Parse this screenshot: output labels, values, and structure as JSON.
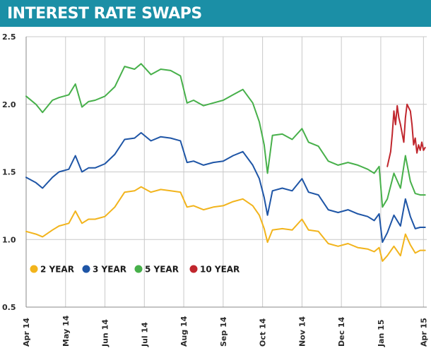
{
  "header": {
    "title": "INTEREST RATE SWAPS"
  },
  "chart_data": {
    "type": "line",
    "title": "INTEREST RATE SWAPS",
    "xlabel": "",
    "ylabel": "",
    "ylim": [
      0.5,
      2.5
    ],
    "xlim": [
      0,
      12.2
    ],
    "y_ticks": [
      "0.5",
      "1.0",
      "1.5",
      "2.0",
      "2.5"
    ],
    "y_tick_values": [
      0.5,
      1.0,
      1.5,
      2.0,
      2.5
    ],
    "x_ticks": [
      "Apr 14",
      "May 14",
      "Jun 14",
      "Jul 14",
      "Aug 14",
      "Sep 14",
      "Oct 14",
      "Nov 14",
      "Dec 14",
      "Jan 15",
      "Apr 15"
    ],
    "x_tick_values": [
      0,
      1.2,
      2.4,
      3.6,
      4.8,
      6.0,
      7.2,
      8.4,
      9.6,
      10.8,
      12.1
    ],
    "grid": true,
    "legend_position": "bottom-left",
    "series": [
      {
        "name": "2 YEAR",
        "color": "#f2b41c",
        "x": [
          0,
          0.3,
          0.5,
          0.8,
          1.0,
          1.3,
          1.5,
          1.7,
          1.9,
          2.1,
          2.4,
          2.7,
          3.0,
          3.3,
          3.5,
          3.8,
          4.1,
          4.4,
          4.7,
          4.9,
          5.1,
          5.4,
          5.7,
          6.0,
          6.3,
          6.6,
          6.9,
          7.1,
          7.25,
          7.35,
          7.5,
          7.8,
          8.1,
          8.4,
          8.6,
          8.9,
          9.2,
          9.5,
          9.8,
          10.1,
          10.4,
          10.6,
          10.75,
          10.85,
          11.0,
          11.2,
          11.4,
          11.55,
          11.7,
          11.85,
          12.0,
          12.15
        ],
        "values": [
          1.06,
          1.04,
          1.02,
          1.07,
          1.1,
          1.12,
          1.21,
          1.12,
          1.15,
          1.15,
          1.17,
          1.24,
          1.35,
          1.36,
          1.39,
          1.35,
          1.37,
          1.36,
          1.35,
          1.24,
          1.25,
          1.22,
          1.24,
          1.25,
          1.28,
          1.3,
          1.25,
          1.18,
          1.08,
          0.98,
          1.07,
          1.08,
          1.07,
          1.15,
          1.07,
          1.06,
          0.97,
          0.95,
          0.97,
          0.94,
          0.93,
          0.91,
          0.94,
          0.84,
          0.88,
          0.95,
          0.88,
          1.04,
          0.96,
          0.9,
          0.92,
          0.92
        ]
      },
      {
        "name": "3 YEAR",
        "color": "#1e55a6",
        "x": [
          0,
          0.3,
          0.5,
          0.8,
          1.0,
          1.3,
          1.5,
          1.7,
          1.9,
          2.1,
          2.4,
          2.7,
          3.0,
          3.3,
          3.5,
          3.8,
          4.1,
          4.4,
          4.7,
          4.9,
          5.1,
          5.4,
          5.7,
          6.0,
          6.3,
          6.6,
          6.9,
          7.1,
          7.25,
          7.35,
          7.5,
          7.8,
          8.1,
          8.4,
          8.6,
          8.9,
          9.2,
          9.5,
          9.8,
          10.1,
          10.4,
          10.6,
          10.75,
          10.85,
          11.0,
          11.2,
          11.4,
          11.55,
          11.7,
          11.85,
          12.0,
          12.15
        ],
        "values": [
          1.46,
          1.42,
          1.38,
          1.46,
          1.5,
          1.52,
          1.62,
          1.5,
          1.53,
          1.53,
          1.56,
          1.63,
          1.74,
          1.75,
          1.79,
          1.73,
          1.76,
          1.75,
          1.73,
          1.57,
          1.58,
          1.55,
          1.57,
          1.58,
          1.62,
          1.65,
          1.55,
          1.45,
          1.31,
          1.18,
          1.36,
          1.38,
          1.36,
          1.45,
          1.35,
          1.33,
          1.22,
          1.2,
          1.22,
          1.19,
          1.17,
          1.14,
          1.19,
          0.98,
          1.05,
          1.18,
          1.1,
          1.3,
          1.17,
          1.08,
          1.09,
          1.09
        ]
      },
      {
        "name": "5 YEAR",
        "color": "#47b04a",
        "x": [
          0,
          0.3,
          0.5,
          0.8,
          1.0,
          1.3,
          1.5,
          1.7,
          1.9,
          2.1,
          2.4,
          2.7,
          3.0,
          3.3,
          3.5,
          3.8,
          4.1,
          4.4,
          4.7,
          4.9,
          5.1,
          5.4,
          5.7,
          6.0,
          6.3,
          6.6,
          6.9,
          7.1,
          7.25,
          7.35,
          7.5,
          7.8,
          8.1,
          8.4,
          8.6,
          8.9,
          9.2,
          9.5,
          9.8,
          10.1,
          10.4,
          10.6,
          10.75,
          10.85,
          11.0,
          11.2,
          11.4,
          11.55,
          11.7,
          11.85,
          12.0,
          12.15
        ],
        "values": [
          2.06,
          2.0,
          1.94,
          2.03,
          2.05,
          2.07,
          2.15,
          1.98,
          2.02,
          2.03,
          2.06,
          2.13,
          2.28,
          2.26,
          2.3,
          2.22,
          2.26,
          2.25,
          2.21,
          2.01,
          2.03,
          1.99,
          2.01,
          2.03,
          2.07,
          2.11,
          2.01,
          1.87,
          1.7,
          1.49,
          1.77,
          1.78,
          1.74,
          1.82,
          1.72,
          1.69,
          1.58,
          1.55,
          1.57,
          1.55,
          1.52,
          1.49,
          1.54,
          1.24,
          1.3,
          1.49,
          1.38,
          1.62,
          1.43,
          1.34,
          1.33,
          1.33
        ]
      },
      {
        "name": "10 YEAR",
        "color": "#c0262d",
        "x": [
          11.0,
          11.1,
          11.15,
          11.2,
          11.25,
          11.3,
          11.35,
          11.4,
          11.5,
          11.55,
          11.6,
          11.7,
          11.75,
          11.8,
          11.85,
          11.9,
          11.95,
          12.0,
          12.05,
          12.1,
          12.15
        ],
        "values": [
          1.54,
          1.65,
          1.78,
          1.95,
          1.85,
          1.99,
          1.9,
          1.85,
          1.72,
          1.9,
          2.0,
          1.95,
          1.85,
          1.7,
          1.75,
          1.64,
          1.7,
          1.66,
          1.72,
          1.66,
          1.68
        ]
      }
    ]
  }
}
